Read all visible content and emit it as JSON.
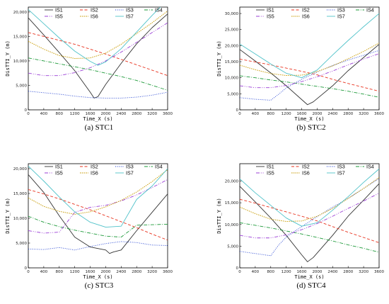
{
  "chart_data": [
    {
      "type": "line",
      "caption": "(a) STC1",
      "xlabel": "Time_X (s)",
      "ylabel": "DisTTI_Y (m)",
      "xlim": [
        0,
        3600
      ],
      "ylim": [
        0,
        21000
      ],
      "xticks": [
        "0",
        "400",
        "800",
        "1200",
        "1600",
        "2000",
        "2400",
        "2800",
        "3200",
        "3600"
      ],
      "yticks": [
        "0",
        "5,000",
        "10,000",
        "15,000",
        "20,000"
      ],
      "ytick_values": [
        0,
        5000,
        10000,
        15000,
        20000
      ],
      "legend": [
        "IS1",
        "IS2",
        "IS3",
        "IS4",
        "IS5",
        "IS6",
        "IS7"
      ],
      "series": [
        {
          "name": "IS1",
          "x": [
            0,
            400,
            800,
            1200,
            1600,
            1700,
            1800,
            2000,
            2400,
            2800,
            3200,
            3600
          ],
          "y": [
            18800,
            15300,
            11700,
            8000,
            3600,
            2400,
            2700,
            5200,
            9500,
            13500,
            16800,
            19600
          ]
        },
        {
          "name": "IS2",
          "x": [
            0,
            400,
            800,
            1200,
            1600,
            2000,
            2400,
            2800,
            3200,
            3600
          ],
          "y": [
            15800,
            15000,
            14200,
            13400,
            12400,
            11400,
            10300,
            9200,
            8100,
            7000
          ]
        },
        {
          "name": "IS3",
          "x": [
            0,
            400,
            800,
            1200,
            1600,
            2000,
            2400,
            2800,
            3200,
            3600
          ],
          "y": [
            3800,
            3500,
            3200,
            2800,
            2500,
            2400,
            2400,
            2600,
            3000,
            3600
          ]
        },
        {
          "name": "IS4",
          "x": [
            0,
            400,
            800,
            1200,
            1600,
            2000,
            2400,
            2800,
            3200,
            3600
          ],
          "y": [
            10600,
            10000,
            9400,
            8800,
            8200,
            7500,
            6800,
            6000,
            5000,
            4000
          ]
        },
        {
          "name": "IS5",
          "x": [
            0,
            400,
            800,
            1200,
            1600,
            2000,
            2400,
            2800,
            3200,
            3600
          ],
          "y": [
            7500,
            7000,
            7000,
            7600,
            8600,
            10000,
            11800,
            13800,
            15800,
            17800
          ]
        },
        {
          "name": "IS6",
          "x": [
            0,
            400,
            800,
            1200,
            1600,
            2000,
            2400,
            2800,
            3200,
            3600
          ],
          "y": [
            14000,
            12400,
            11100,
            10500,
            10600,
            11600,
            13400,
            15600,
            17800,
            20200
          ]
        },
        {
          "name": "IS7",
          "x": [
            0,
            400,
            800,
            1200,
            1600,
            1800,
            2000,
            2400,
            2800,
            3200,
            3600
          ],
          "y": [
            20500,
            17600,
            14700,
            12000,
            9900,
            9100,
            9800,
            12500,
            15900,
            19300,
            22500
          ]
        }
      ]
    },
    {
      "type": "line",
      "caption": "(b) STC2",
      "xlabel": "Time_X (s)",
      "ylabel": "DisTTI_Y (m)",
      "xlim": [
        0,
        3600
      ],
      "ylim": [
        0,
        32000
      ],
      "xticks": [
        "0",
        "400",
        "800",
        "1200",
        "1600",
        "2000",
        "2400",
        "2800",
        "3200",
        "3600"
      ],
      "yticks": [
        "0",
        "5,000",
        "10,000",
        "15,000",
        "20,000",
        "25,000",
        "30,000"
      ],
      "ytick_values": [
        0,
        5000,
        10000,
        15000,
        20000,
        25000,
        30000
      ],
      "legend": [
        "IS1",
        "IS2",
        "IS3",
        "IS4",
        "IS5",
        "IS6",
        "IS7"
      ],
      "series": [
        {
          "name": "IS1",
          "x": [
            0,
            400,
            800,
            1200,
            1600,
            1750,
            1900,
            2400,
            2800,
            3200,
            3600
          ],
          "y": [
            18800,
            15200,
            11500,
            7500,
            3200,
            1600,
            2500,
            7500,
            12200,
            16300,
            20400
          ]
        },
        {
          "name": "IS2",
          "x": [
            0,
            400,
            800,
            1200,
            1600,
            2000,
            2400,
            2800,
            3200,
            3600
          ],
          "y": [
            15800,
            14900,
            14000,
            13000,
            12000,
            10900,
            9500,
            8200,
            7000,
            5800
          ]
        },
        {
          "name": "IS3",
          "x": [
            0,
            400,
            800,
            1000,
            1200,
            1600,
            2000,
            2400,
            2800,
            3200,
            3600
          ],
          "y": [
            3800,
            3300,
            3000,
            4800,
            6800,
            9500,
            11800,
            13800,
            15500,
            17000,
            18500
          ]
        },
        {
          "name": "IS4",
          "x": [
            0,
            400,
            800,
            1200,
            1600,
            2000,
            2400,
            2800,
            3200,
            3600
          ],
          "y": [
            10600,
            10000,
            9300,
            8700,
            8000,
            7300,
            6600,
            5800,
            4900,
            3900
          ]
        },
        {
          "name": "IS5",
          "x": [
            0,
            400,
            800,
            1200,
            1600,
            2000,
            2400,
            2800,
            3200,
            3600
          ],
          "y": [
            7500,
            6900,
            6900,
            7600,
            8800,
            10300,
            12100,
            14000,
            15800,
            17500
          ]
        },
        {
          "name": "IS6",
          "x": [
            0,
            400,
            800,
            1200,
            1600,
            2000,
            2400,
            2800,
            3200,
            3600
          ],
          "y": [
            13900,
            12500,
            11300,
            10700,
            10800,
            11900,
            13700,
            15900,
            18200,
            20800
          ]
        },
        {
          "name": "IS7",
          "x": [
            0,
            400,
            800,
            1200,
            1600,
            2000,
            2400,
            2800,
            3200,
            3600
          ],
          "y": [
            20500,
            17400,
            14300,
            11400,
            10000,
            12400,
            17100,
            21600,
            25900,
            30000
          ]
        }
      ]
    },
    {
      "type": "line",
      "caption": "(c) STC3",
      "xlabel": "Time_X (s)",
      "ylabel": "DisTTI_Y (m)",
      "xlim": [
        0,
        3600
      ],
      "ylim": [
        0,
        21000
      ],
      "xticks": [
        "0",
        "400",
        "800",
        "1200",
        "1600",
        "2000",
        "2400",
        "2800",
        "3200",
        "3600"
      ],
      "yticks": [
        "0",
        "5,000",
        "10,000",
        "15,000",
        "20,000"
      ],
      "ytick_values": [
        0,
        5000,
        10000,
        15000,
        20000
      ],
      "legend": [
        "IS1",
        "IS2",
        "IS3",
        "IS4",
        "IS5",
        "IS6",
        "IS7"
      ],
      "series": [
        {
          "name": "IS1",
          "x": [
            0,
            400,
            800,
            1200,
            1600,
            2000,
            2100,
            2200,
            2400,
            2800,
            3200,
            3600
          ],
          "y": [
            18800,
            15200,
            10500,
            6200,
            4200,
            3600,
            2900,
            3200,
            3600,
            7500,
            11200,
            14900
          ]
        },
        {
          "name": "IS2",
          "x": [
            0,
            400,
            800,
            1200,
            1600,
            2000,
            2400,
            2800,
            3200,
            3600
          ],
          "y": [
            15800,
            14900,
            13900,
            12800,
            11700,
            10500,
            9300,
            8100,
            6800,
            5600
          ]
        },
        {
          "name": "IS3",
          "x": [
            0,
            400,
            800,
            1200,
            1600,
            2000,
            2400,
            2800,
            3200,
            3600
          ],
          "y": [
            3800,
            3700,
            4100,
            3600,
            4300,
            4900,
            5300,
            5100,
            4600,
            4500
          ]
        },
        {
          "name": "IS4",
          "x": [
            0,
            400,
            800,
            1200,
            1600,
            2000,
            2400,
            2800,
            3200,
            3600
          ],
          "y": [
            10400,
            9200,
            8300,
            7600,
            7000,
            6400,
            6200,
            8600,
            8700,
            8800
          ]
        },
        {
          "name": "IS5",
          "x": [
            0,
            400,
            800,
            1200,
            1600,
            2000,
            2400,
            2800,
            3200,
            3600
          ],
          "y": [
            7500,
            7000,
            7200,
            11200,
            12200,
            12600,
            13500,
            14700,
            16200,
            17800
          ]
        },
        {
          "name": "IS6",
          "x": [
            0,
            400,
            800,
            1200,
            1600,
            2000,
            2400,
            2800,
            3200,
            3600
          ],
          "y": [
            14100,
            12400,
            11400,
            10800,
            11300,
            12300,
            13600,
            15300,
            17400,
            19800
          ]
        },
        {
          "name": "IS7",
          "x": [
            0,
            400,
            800,
            1200,
            1600,
            2000,
            2400,
            2800,
            3200,
            3600
          ],
          "y": [
            20500,
            17500,
            14300,
            11300,
            9200,
            8200,
            8400,
            13800,
            16500,
            20000
          ]
        }
      ]
    },
    {
      "type": "line",
      "caption": "(d) STC4",
      "xlabel": "Time_X (s)",
      "ylabel": "DisTTI_Y (m)",
      "xlim": [
        0,
        3600
      ],
      "ylim": [
        0,
        24000
      ],
      "xticks": [
        "0",
        "400",
        "800",
        "1200",
        "1600",
        "2000",
        "2400",
        "2800",
        "3200",
        "3600"
      ],
      "yticks": [
        "0",
        "5,000",
        "10,000",
        "15,000",
        "20,000"
      ],
      "ytick_values": [
        0,
        5000,
        10000,
        15000,
        20000
      ],
      "legend": [
        "IS1",
        "IS2",
        "IS3",
        "IS4",
        "IS5",
        "IS6",
        "IS7"
      ],
      "series": [
        {
          "name": "IS1",
          "x": [
            0,
            400,
            800,
            1200,
            1600,
            1750,
            1900,
            2400,
            2800,
            3200,
            3600
          ],
          "y": [
            18800,
            15200,
            11500,
            7500,
            3000,
            1400,
            2400,
            7500,
            11900,
            15600,
            19400
          ]
        },
        {
          "name": "IS2",
          "x": [
            0,
            400,
            800,
            1200,
            1600,
            2000,
            2400,
            2800,
            3200,
            3600
          ],
          "y": [
            15800,
            14900,
            13900,
            12900,
            11900,
            10800,
            9500,
            8200,
            7000,
            5800
          ]
        },
        {
          "name": "IS3",
          "x": [
            0,
            400,
            800,
            1000,
            1200,
            1600,
            2000,
            2400,
            2800,
            3200,
            3600
          ],
          "y": [
            3800,
            3300,
            2800,
            5200,
            7100,
            9500,
            11800,
            14000,
            16000,
            18300,
            20600
          ]
        },
        {
          "name": "IS4",
          "x": [
            0,
            400,
            800,
            1200,
            1600,
            2000,
            2400,
            2800,
            3200,
            3600
          ],
          "y": [
            10400,
            9800,
            9200,
            8500,
            7800,
            7000,
            6200,
            5300,
            4500,
            3600
          ]
        },
        {
          "name": "IS5",
          "x": [
            0,
            400,
            800,
            1200,
            1600,
            2000,
            2400,
            2800,
            3200,
            3600
          ],
          "y": [
            7500,
            6900,
            6900,
            7600,
            8800,
            10200,
            11900,
            13700,
            15400,
            17200
          ]
        },
        {
          "name": "IS6",
          "x": [
            0,
            400,
            800,
            1200,
            1600,
            2000,
            2400,
            2800,
            3200,
            3600
          ],
          "y": [
            14000,
            12500,
            11200,
            10700,
            10800,
            11900,
            13700,
            16000,
            18300,
            20800
          ]
        },
        {
          "name": "IS7",
          "x": [
            0,
            400,
            800,
            1200,
            1600,
            2000,
            2400,
            2800,
            3200,
            3600
          ],
          "y": [
            20500,
            17300,
            14400,
            11500,
            9600,
            10400,
            13300,
            16400,
            19700,
            22800
          ]
        }
      ]
    }
  ],
  "series_styles": [
    {
      "name": "IS1",
      "color": "#333333",
      "dash": ""
    },
    {
      "name": "IS2",
      "color": "#e8331f",
      "dash": "4 2.5"
    },
    {
      "name": "IS3",
      "color": "#1f3fd1",
      "dash": "1 1.6"
    },
    {
      "name": "IS4",
      "color": "#1e9a3a",
      "dash": "5 1.8 1 1.8"
    },
    {
      "name": "IS5",
      "color": "#9b3fd6",
      "dash": "5 1.8 1 1.8 1 1.8"
    },
    {
      "name": "IS6",
      "color": "#c79a00",
      "dash": "1.6 1.2"
    },
    {
      "name": "IS7",
      "color": "#4fc2c9",
      "dash": ""
    }
  ]
}
